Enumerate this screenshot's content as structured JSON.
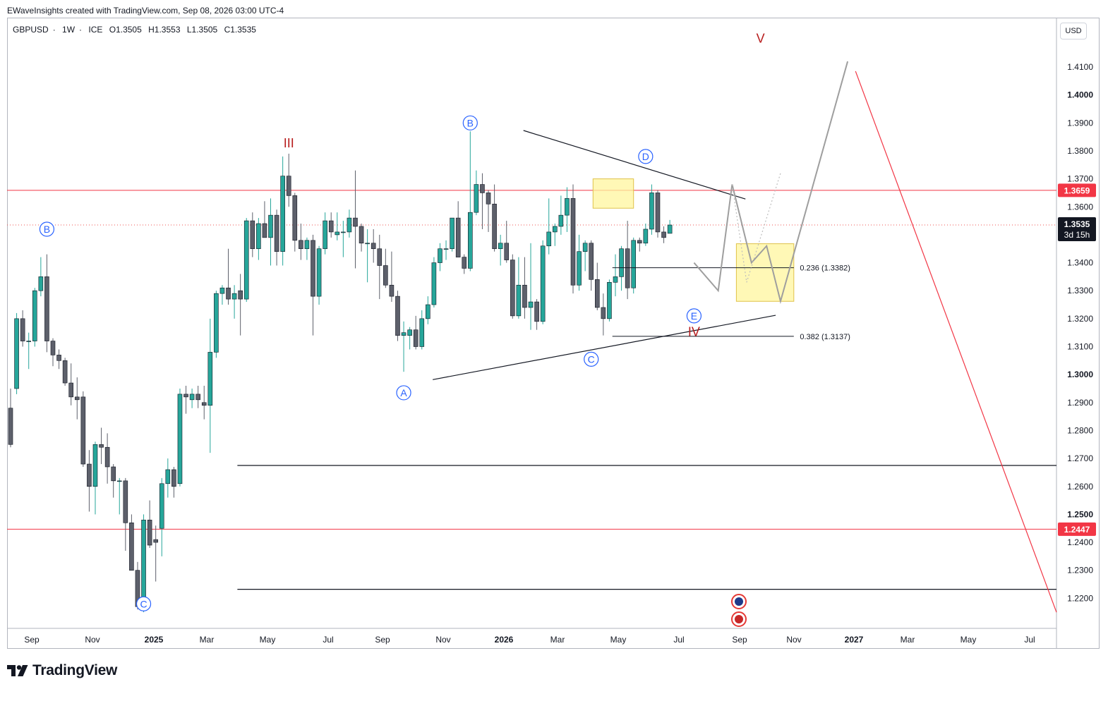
{
  "header": {
    "attribution": "EWaveInsights created with TradingView.com, Sep 08, 2026 03:00 UTC-4"
  },
  "symbol_info": {
    "pair": "GBPUSD",
    "interval": "1W",
    "exchange": "ICE",
    "open": "O1.3505",
    "high": "H1.3553",
    "low": "L1.3505",
    "close": "C1.3535"
  },
  "currency_label": "USD",
  "brand": "TradingView",
  "colors": {
    "bull": "#26a69a",
    "bear": "#5d606b",
    "resistance": "#f23645",
    "wave_blue": "#2962ff",
    "wave_red": "#b71c1c",
    "zone": "#fff59d",
    "projection": "#9e9e9e"
  },
  "chart_data": {
    "type": "candlestick",
    "title": "",
    "y_axis": {
      "range": [
        1.2135,
        1.4355
      ],
      "ticks": [
        "1.4100",
        "1.4000",
        "1.3900",
        "1.3800",
        "1.3700",
        "1.3600",
        "1.3400",
        "1.3300",
        "1.3200",
        "1.3100",
        "1.3000",
        "1.2900",
        "1.2800",
        "1.2700",
        "1.2600",
        "1.2500",
        "1.2400",
        "1.2300",
        "1.2200"
      ],
      "bold_ticks": [
        "1.4000",
        "1.3000",
        "1.2500"
      ]
    },
    "x_axis": {
      "ticks": [
        "Sep",
        "Nov",
        "2025",
        "Mar",
        "May",
        "Jul",
        "Sep",
        "Nov",
        "2026",
        "Mar",
        "May",
        "Jul",
        "Sep",
        "Nov",
        "2027",
        "Mar",
        "May",
        "Jul"
      ],
      "bold_ticks": [
        "2025",
        "2026",
        "2027"
      ]
    },
    "price_labels": [
      {
        "price": 1.3659,
        "text": "1.3659",
        "color": "#f23645"
      },
      {
        "price": 1.3535,
        "text": "1.3535",
        "sub": "3d 15h",
        "color": "#131722"
      },
      {
        "price": 1.2447,
        "text": "1.2447",
        "color": "#f23645"
      }
    ],
    "horizontal_levels": [
      {
        "price": 1.3659,
        "style": "red"
      },
      {
        "price": 1.2447,
        "style": "red"
      },
      {
        "price": 1.3535,
        "style": "dotted"
      },
      {
        "price": 1.2675,
        "style": "black"
      },
      {
        "price": 1.2232,
        "style": "black"
      }
    ],
    "fib_levels": [
      {
        "label": "0.236 (1.3382)",
        "price": 1.3382
      },
      {
        "label": "0.382 (1.3137)",
        "price": 1.3137
      }
    ],
    "wave_labels": [
      {
        "text": "B",
        "style": "blue-circle",
        "week": 6,
        "price": 1.352
      },
      {
        "text": "C",
        "style": "blue-circle",
        "week": 22,
        "price": 1.218
      },
      {
        "text": "III",
        "style": "red",
        "week": 46,
        "price": 1.383
      },
      {
        "text": "A",
        "style": "blue-circle",
        "week": 65,
        "price": 1.2935
      },
      {
        "text": "B",
        "style": "blue-circle",
        "week": 76,
        "price": 1.39
      },
      {
        "text": "C",
        "style": "blue-circle",
        "week": 96,
        "price": 1.3055
      },
      {
        "text": "D",
        "style": "blue-circle",
        "week": 105,
        "price": 1.378
      },
      {
        "text": "E",
        "style": "blue-circle",
        "week": 113,
        "price": 1.321
      },
      {
        "text": "IV",
        "style": "red",
        "week": 113,
        "price": 1.3155
      },
      {
        "text": "V",
        "style": "red",
        "week": 124,
        "price": 1.4205
      }
    ],
    "candles": [
      [
        0,
        1.288,
        1.295,
        1.274,
        1.275
      ],
      [
        1,
        1.295,
        1.322,
        1.293,
        1.32
      ],
      [
        2,
        1.32,
        1.323,
        1.31,
        1.312
      ],
      [
        3,
        1.312,
        1.315,
        1.302,
        1.312
      ],
      [
        4,
        1.312,
        1.331,
        1.31,
        1.33
      ],
      [
        5,
        1.33,
        1.342,
        1.328,
        1.335
      ],
      [
        6,
        1.335,
        1.343,
        1.308,
        1.312
      ],
      [
        7,
        1.312,
        1.313,
        1.303,
        1.307
      ],
      [
        8,
        1.307,
        1.309,
        1.302,
        1.305
      ],
      [
        9,
        1.305,
        1.306,
        1.296,
        1.297
      ],
      [
        10,
        1.297,
        1.304,
        1.289,
        1.292
      ],
      [
        11,
        1.292,
        1.299,
        1.284,
        1.291
      ],
      [
        12,
        1.292,
        1.294,
        1.267,
        1.268
      ],
      [
        13,
        1.268,
        1.273,
        1.251,
        1.26
      ],
      [
        14,
        1.26,
        1.276,
        1.25,
        1.275
      ],
      [
        15,
        1.275,
        1.281,
        1.268,
        1.274
      ],
      [
        16,
        1.274,
        1.279,
        1.261,
        1.267
      ],
      [
        17,
        1.267,
        1.268,
        1.256,
        1.262
      ],
      [
        18,
        1.262,
        1.263,
        1.25,
        1.262
      ],
      [
        19,
        1.262,
        1.263,
        1.237,
        1.247
      ],
      [
        20,
        1.247,
        1.25,
        1.23,
        1.23
      ],
      [
        21,
        1.23,
        1.233,
        1.216,
        1.217
      ],
      [
        22,
        1.217,
        1.25,
        1.215,
        1.248
      ],
      [
        23,
        1.248,
        1.255,
        1.238,
        1.239
      ],
      [
        24,
        1.241,
        1.246,
        1.226,
        1.24
      ],
      [
        25,
        1.245,
        1.263,
        1.235,
        1.261
      ],
      [
        26,
        1.261,
        1.27,
        1.256,
        1.266
      ],
      [
        27,
        1.266,
        1.267,
        1.256,
        1.26
      ],
      [
        28,
        1.261,
        1.295,
        1.26,
        1.293
      ],
      [
        29,
        1.293,
        1.296,
        1.286,
        1.292
      ],
      [
        30,
        1.291,
        1.295,
        1.288,
        1.293
      ],
      [
        31,
        1.293,
        1.296,
        1.288,
        1.291
      ],
      [
        32,
        1.29,
        1.296,
        1.284,
        1.289
      ],
      [
        33,
        1.289,
        1.32,
        1.272,
        1.308
      ],
      [
        34,
        1.308,
        1.33,
        1.306,
        1.329
      ],
      [
        35,
        1.329,
        1.332,
        1.325,
        1.331
      ],
      [
        36,
        1.331,
        1.345,
        1.325,
        1.327
      ],
      [
        37,
        1.327,
        1.332,
        1.32,
        1.329
      ],
      [
        38,
        1.33,
        1.336,
        1.314,
        1.327
      ],
      [
        39,
        1.327,
        1.356,
        1.326,
        1.355
      ],
      [
        40,
        1.355,
        1.358,
        1.342,
        1.345
      ],
      [
        41,
        1.345,
        1.356,
        1.341,
        1.354
      ],
      [
        42,
        1.354,
        1.362,
        1.35,
        1.349
      ],
      [
        43,
        1.349,
        1.363,
        1.339,
        1.357
      ],
      [
        44,
        1.357,
        1.359,
        1.339,
        1.344
      ],
      [
        45,
        1.344,
        1.378,
        1.339,
        1.371
      ],
      [
        46,
        1.371,
        1.379,
        1.36,
        1.364
      ],
      [
        47,
        1.364,
        1.365,
        1.344,
        1.348
      ],
      [
        48,
        1.348,
        1.354,
        1.341,
        1.345
      ],
      [
        49,
        1.345,
        1.349,
        1.341,
        1.348
      ],
      [
        50,
        1.348,
        1.35,
        1.314,
        1.328
      ],
      [
        51,
        1.328,
        1.346,
        1.325,
        1.345
      ],
      [
        52,
        1.345,
        1.358,
        1.343,
        1.355
      ],
      [
        53,
        1.355,
        1.358,
        1.349,
        1.351
      ],
      [
        54,
        1.35,
        1.358,
        1.348,
        1.351
      ],
      [
        55,
        1.351,
        1.355,
        1.342,
        1.351
      ],
      [
        56,
        1.351,
        1.359,
        1.349,
        1.356
      ],
      [
        57,
        1.356,
        1.373,
        1.338,
        1.353
      ],
      [
        58,
        1.353,
        1.354,
        1.344,
        1.347
      ],
      [
        59,
        1.347,
        1.352,
        1.333,
        1.347
      ],
      [
        60,
        1.347,
        1.352,
        1.34,
        1.345
      ],
      [
        61,
        1.345,
        1.35,
        1.327,
        1.339
      ],
      [
        62,
        1.339,
        1.345,
        1.331,
        1.332
      ],
      [
        63,
        1.332,
        1.344,
        1.326,
        1.328
      ],
      [
        64,
        1.328,
        1.33,
        1.312,
        1.314
      ],
      [
        65,
        1.314,
        1.319,
        1.301,
        1.315
      ],
      [
        66,
        1.314,
        1.317,
        1.309,
        1.316
      ],
      [
        67,
        1.316,
        1.321,
        1.309,
        1.31
      ],
      [
        68,
        1.31,
        1.323,
        1.309,
        1.32
      ],
      [
        69,
        1.32,
        1.328,
        1.318,
        1.325
      ],
      [
        70,
        1.325,
        1.342,
        1.324,
        1.34
      ],
      [
        71,
        1.34,
        1.347,
        1.337,
        1.345
      ],
      [
        72,
        1.345,
        1.348,
        1.341,
        1.345
      ],
      [
        73,
        1.345,
        1.356,
        1.344,
        1.356
      ],
      [
        74,
        1.356,
        1.362,
        1.342,
        1.342
      ],
      [
        75,
        1.342,
        1.343,
        1.336,
        1.338
      ],
      [
        76,
        1.338,
        1.387,
        1.337,
        1.358
      ],
      [
        77,
        1.358,
        1.373,
        1.357,
        1.368
      ],
      [
        78,
        1.368,
        1.372,
        1.352,
        1.365
      ],
      [
        79,
        1.365,
        1.366,
        1.351,
        1.361
      ],
      [
        80,
        1.361,
        1.368,
        1.344,
        1.345
      ],
      [
        81,
        1.345,
        1.35,
        1.339,
        1.347
      ],
      [
        82,
        1.347,
        1.355,
        1.34,
        1.341
      ],
      [
        83,
        1.341,
        1.343,
        1.32,
        1.321
      ],
      [
        84,
        1.321,
        1.342,
        1.32,
        1.332
      ],
      [
        85,
        1.332,
        1.342,
        1.32,
        1.324
      ],
      [
        86,
        1.324,
        1.347,
        1.316,
        1.326
      ],
      [
        87,
        1.326,
        1.327,
        1.316,
        1.319
      ],
      [
        88,
        1.319,
        1.348,
        1.318,
        1.346
      ],
      [
        89,
        1.346,
        1.363,
        1.343,
        1.351
      ],
      [
        90,
        1.351,
        1.354,
        1.346,
        1.353
      ],
      [
        91,
        1.353,
        1.364,
        1.35,
        1.357
      ],
      [
        92,
        1.357,
        1.367,
        1.351,
        1.363
      ],
      [
        93,
        1.363,
        1.368,
        1.329,
        1.332
      ],
      [
        94,
        1.332,
        1.35,
        1.33,
        1.344
      ],
      [
        95,
        1.344,
        1.348,
        1.337,
        1.347
      ],
      [
        96,
        1.347,
        1.348,
        1.33,
        1.334
      ],
      [
        97,
        1.334,
        1.34,
        1.323,
        1.324
      ],
      [
        98,
        1.324,
        1.329,
        1.314,
        1.32
      ],
      [
        99,
        1.32,
        1.334,
        1.319,
        1.333
      ],
      [
        100,
        1.333,
        1.343,
        1.328,
        1.335
      ],
      [
        101,
        1.335,
        1.346,
        1.33,
        1.345
      ],
      [
        102,
        1.345,
        1.355,
        1.327,
        1.331
      ],
      [
        103,
        1.331,
        1.349,
        1.329,
        1.348
      ],
      [
        104,
        1.348,
        1.349,
        1.344,
        1.347
      ],
      [
        105,
        1.347,
        1.354,
        1.346,
        1.352
      ],
      [
        106,
        1.352,
        1.368,
        1.35,
        1.365
      ],
      [
        107,
        1.365,
        1.366,
        1.349,
        1.351
      ],
      [
        108,
        1.351,
        1.353,
        1.347,
        1.349
      ],
      [
        109,
        1.3505,
        1.3553,
        1.3505,
        1.3535
      ]
    ]
  }
}
